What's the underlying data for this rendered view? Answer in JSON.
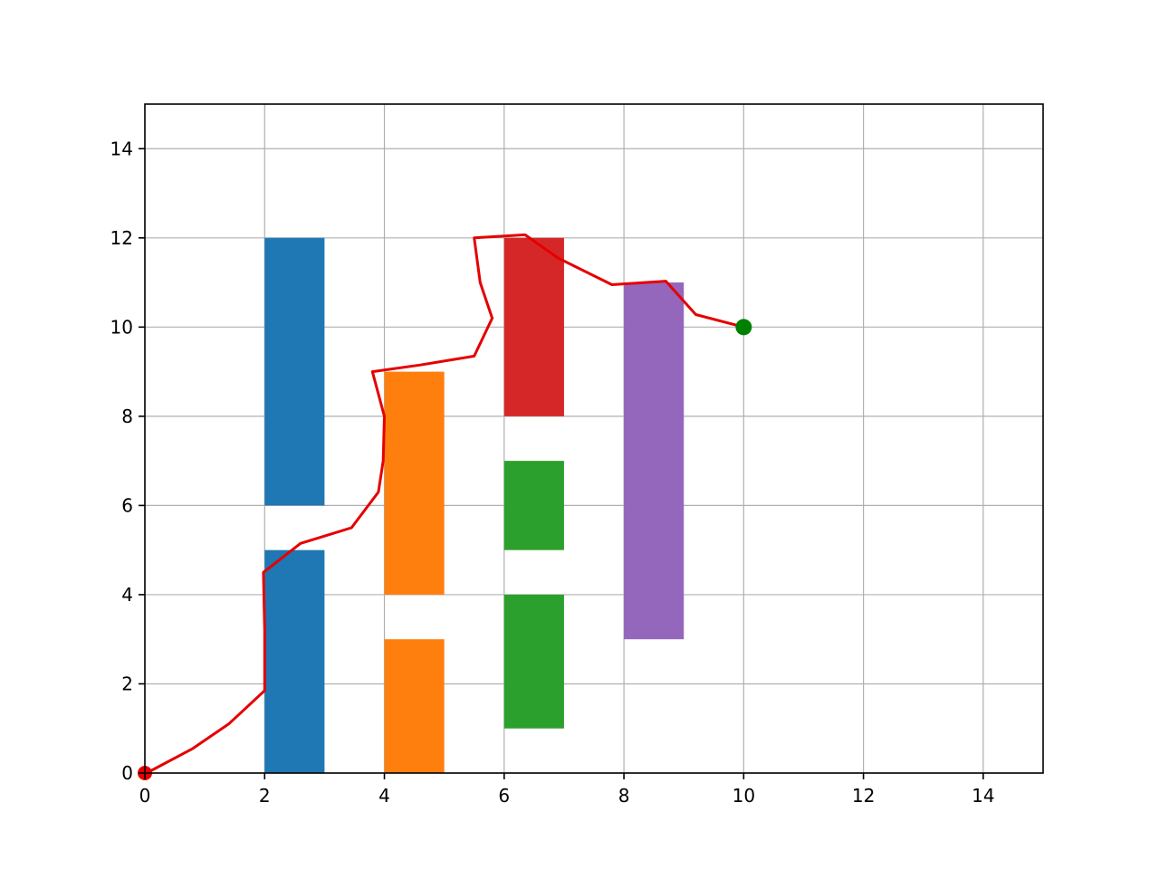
{
  "chart_data": {
    "type": "line",
    "xlim": [
      0,
      15
    ],
    "ylim": [
      0,
      15
    ],
    "xticks": [
      0,
      2,
      4,
      6,
      8,
      10,
      12,
      14
    ],
    "yticks": [
      0,
      2,
      4,
      6,
      8,
      10,
      12,
      14
    ],
    "xtick_labels": [
      "0",
      "2",
      "4",
      "6",
      "8",
      "10",
      "12",
      "14"
    ],
    "ytick_labels": [
      "0",
      "2",
      "4",
      "6",
      "8",
      "10",
      "12",
      "14"
    ],
    "grid": true,
    "obstacles": [
      {
        "x": [
          2,
          3
        ],
        "y": [
          0,
          5
        ],
        "color": "#1f77b4"
      },
      {
        "x": [
          2,
          3
        ],
        "y": [
          6,
          12
        ],
        "color": "#1f77b4"
      },
      {
        "x": [
          4,
          5
        ],
        "y": [
          0,
          3
        ],
        "color": "#ff7f0e"
      },
      {
        "x": [
          4,
          5
        ],
        "y": [
          4,
          9
        ],
        "color": "#ff7f0e"
      },
      {
        "x": [
          6,
          7
        ],
        "y": [
          1,
          4
        ],
        "color": "#2ca02c"
      },
      {
        "x": [
          6,
          7
        ],
        "y": [
          5,
          7
        ],
        "color": "#2ca02c"
      },
      {
        "x": [
          6,
          7
        ],
        "y": [
          8,
          12
        ],
        "color": "#d62728"
      },
      {
        "x": [
          8,
          9
        ],
        "y": [
          3,
          11
        ],
        "color": "#9467bd"
      }
    ],
    "path": {
      "color": "#e50000",
      "points": [
        [
          0.0,
          0.0
        ],
        [
          0.1,
          0.05
        ],
        [
          0.8,
          0.55
        ],
        [
          1.4,
          1.1
        ],
        [
          2.0,
          1.85
        ],
        [
          2.0,
          3.2
        ],
        [
          1.98,
          4.5
        ],
        [
          2.6,
          5.15
        ],
        [
          3.45,
          5.5
        ],
        [
          3.9,
          6.3
        ],
        [
          3.98,
          7.0
        ],
        [
          4.0,
          8.0
        ],
        [
          3.8,
          9.0
        ],
        [
          4.6,
          9.15
        ],
        [
          5.5,
          9.35
        ],
        [
          5.8,
          10.2
        ],
        [
          5.6,
          11.0
        ],
        [
          5.5,
          12.0
        ],
        [
          6.35,
          12.07
        ],
        [
          6.9,
          11.55
        ],
        [
          7.8,
          10.95
        ],
        [
          8.7,
          11.03
        ],
        [
          9.2,
          10.28
        ],
        [
          10.0,
          10.0
        ]
      ]
    },
    "start": {
      "x": 0,
      "y": 0,
      "color": "#e50000"
    },
    "goal": {
      "x": 10,
      "y": 10,
      "color": "#008000"
    }
  }
}
